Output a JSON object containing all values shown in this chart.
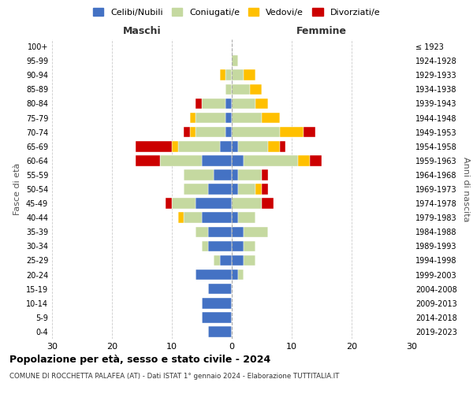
{
  "age_groups": [
    "0-4",
    "5-9",
    "10-14",
    "15-19",
    "20-24",
    "25-29",
    "30-34",
    "35-39",
    "40-44",
    "45-49",
    "50-54",
    "55-59",
    "60-64",
    "65-69",
    "70-74",
    "75-79",
    "80-84",
    "85-89",
    "90-94",
    "95-99",
    "100+"
  ],
  "birth_years": [
    "2019-2023",
    "2014-2018",
    "2009-2013",
    "2004-2008",
    "1999-2003",
    "1994-1998",
    "1989-1993",
    "1984-1988",
    "1979-1983",
    "1974-1978",
    "1969-1973",
    "1964-1968",
    "1959-1963",
    "1954-1958",
    "1949-1953",
    "1944-1948",
    "1939-1943",
    "1934-1938",
    "1929-1933",
    "1924-1928",
    "≤ 1923"
  ],
  "colors": {
    "celibe": "#4472c4",
    "coniugato": "#c5d9a0",
    "vedovo": "#ffc000",
    "divorziato": "#cc0000"
  },
  "maschi": {
    "celibe": [
      4,
      5,
      5,
      4,
      6,
      2,
      4,
      4,
      5,
      6,
      4,
      3,
      5,
      2,
      1,
      1,
      1,
      0,
      0,
      0,
      0
    ],
    "coniugato": [
      0,
      0,
      0,
      0,
      0,
      1,
      1,
      2,
      3,
      4,
      4,
      5,
      7,
      7,
      5,
      5,
      4,
      1,
      1,
      0,
      0
    ],
    "vedovo": [
      0,
      0,
      0,
      0,
      0,
      0,
      0,
      0,
      1,
      0,
      0,
      0,
      0,
      1,
      1,
      1,
      0,
      0,
      1,
      0,
      0
    ],
    "divorziato": [
      0,
      0,
      0,
      0,
      0,
      0,
      0,
      0,
      0,
      1,
      0,
      0,
      4,
      6,
      1,
      0,
      1,
      0,
      0,
      0,
      0
    ]
  },
  "femmine": {
    "nubile": [
      0,
      0,
      0,
      0,
      1,
      2,
      2,
      2,
      1,
      0,
      1,
      1,
      2,
      1,
      0,
      0,
      0,
      0,
      0,
      0,
      0
    ],
    "coniugata": [
      0,
      0,
      0,
      0,
      1,
      2,
      2,
      4,
      3,
      5,
      3,
      4,
      9,
      5,
      8,
      5,
      4,
      3,
      2,
      1,
      0
    ],
    "vedova": [
      0,
      0,
      0,
      0,
      0,
      0,
      0,
      0,
      0,
      0,
      1,
      0,
      2,
      2,
      4,
      3,
      2,
      2,
      2,
      0,
      0
    ],
    "divorziata": [
      0,
      0,
      0,
      0,
      0,
      0,
      0,
      0,
      0,
      2,
      1,
      1,
      2,
      1,
      2,
      0,
      0,
      0,
      0,
      0,
      0
    ]
  },
  "xlim": 30,
  "xlabel_left": "Maschi",
  "xlabel_right": "Femmine",
  "ylabel": "Fasce di età",
  "ylabel_right": "Anni di nascita",
  "title": "Popolazione per età, sesso e stato civile - 2024",
  "subtitle": "COMUNE DI ROCCHETTA PALAFEA (AT) - Dati ISTAT 1° gennaio 2024 - Elaborazione TUTTITALIA.IT",
  "legend_labels": [
    "Celibi/Nubili",
    "Coniugati/e",
    "Vedovi/e",
    "Divorziati/e"
  ],
  "bg_color": "#ffffff",
  "grid_color": "#cccccc"
}
